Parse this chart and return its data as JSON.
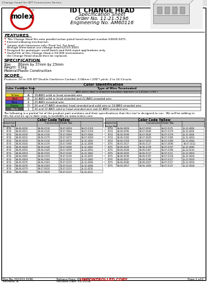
{
  "title_line1": "IDT CHANGE HEAD",
  "title_line2": "Specification Sheet",
  "title_line3": "Order No. 11-21-5196",
  "title_line4": "Engineering No. AM60116",
  "header_text": "Change head for IDT Connectors Series.",
  "features_title": "FEATURES",
  "features": [
    "This Change Head fits onto parallel action pistol hand tool part number 63600-0471.",
    "Internal indexing mechanism.",
    "Jumper style harnesses only (Feed 1a).  For feed through termination use change head 62100-0400.",
    "Designed for prototype, small batch and field repair applications only.",
    "Useful life of this Change Head is 50,000 terminations; the Change Head should then be replaced."
  ],
  "spec_title": "SPECIFICATION",
  "spec_size": "80mm by 37mm by 23mm",
  "spec_weight": "0.1kg",
  "spec_material": "Plastic Construction",
  "scope_title": "SCOPE",
  "scope_text": "Products: 16 to 100 IDT Double Cantilever Contact, 2.54mm (.100\") pitch, 2 to 16 Circuits.",
  "color_codes": [
    "Yellow",
    "Red",
    "Blue",
    "Green",
    "Black"
  ],
  "slot_sizes": [
    "A",
    "B",
    "4",
    "D",
    "1"
  ],
  "wire_types": [
    "18-AWG solid or head stranded wire",
    "24 AWG solid or head stranded and 22 AWG stranded wire",
    "20 AWG stranded wire",
    "26 and 27 AWG stranded, head stranded and solid wire or 24 AWG stranded wire",
    "24 and 22 AWG solid or head stranded wire and 22 AWG stranded wire"
  ],
  "wire_sub_note": "AWG wires have a stranded insulation diameter of 2.41mm (.095\")",
  "partial_line1": "The following is a partial list of the product part numbers and their specifications that this tool is designed to run.  We will be adding to",
  "partial_line2": "this list and an up to date copy is available on www.molex.com.",
  "color_code_yellow": "Color Code Yellow",
  "left_table_data": [
    [
      "7674",
      "09-06-0020",
      "09-06-0110",
      "19-07-0059",
      "09-07-0150"
    ],
    [
      "7674",
      "09-06-0021",
      "09-06-0120",
      "19-07-0064",
      "09-07-0159"
    ],
    [
      "7674",
      "09-06-0030",
      "09-06-0130",
      "19-07-0069",
      "09-07-0060"
    ],
    [
      "7674",
      "09-06-0032",
      "09-06-0179",
      "19-07-0070",
      "09-07-0069"
    ],
    [
      "7674",
      "09-06-0039",
      "09-06-0130",
      "19-07-0079",
      "26-32-4004"
    ],
    [
      "7674",
      "09-06-0040",
      "09-06-0139",
      "19-07-0080",
      "26-32-4008"
    ],
    [
      "7674",
      "09-06-0049",
      "09-06-0140",
      "19-07-0090",
      "26-32-4044"
    ],
    [
      "7674",
      "09-06-0050",
      "09-06-0149",
      "19-07-0099",
      "26-32-4054"
    ],
    [
      "7674",
      "09-06-0059",
      "09-06-0150",
      "19-07-0100",
      "26-32-4064"
    ],
    [
      "7674",
      "09-06-0060",
      "09-06-0159",
      "19-07-0109",
      "26-32-4074"
    ],
    [
      "7674",
      "09-06-0069",
      "09-06-0160",
      "19-07-0110",
      "26-32-4080"
    ],
    [
      "7674",
      "09-06-0070",
      "09-06-0169",
      "19-07-0119",
      "26-32-4094"
    ],
    [
      "7674",
      "09-06-0076",
      "09-06-0169",
      "19-07-0120",
      "26-32-4094"
    ],
    [
      "7674",
      "09-06-0079",
      "09-07-0020",
      "19-07-0119",
      "26-32-4104"
    ],
    [
      "7674",
      "09-06-0080",
      "09-07-0029",
      "19-07-0119",
      "26-32-4114"
    ]
  ],
  "right_table_data": [
    [
      "7674",
      "09-06-0009",
      "09-07-0030",
      "09-07-0171",
      "26-32-4024"
    ],
    [
      "7674",
      "09-06-0090",
      "09-07-0040",
      "09-07-0179",
      "26-32-4034"
    ],
    [
      "7674",
      "09-06-0099",
      "09-07-0040",
      "09-07-0179",
      "26-32-4044"
    ],
    [
      "7674",
      "09-06-0100",
      "09-07-0049",
      "09-07-0180",
      "26-32-4054"
    ],
    [
      "7674",
      "09-06-0109",
      "09-07-0050",
      "09-07-0189",
      "26-32-4064"
    ],
    [
      "7675",
      "09-05-0017",
      "09-06-0117",
      "09-07-0090",
      "09-07-5012"
    ],
    [
      "7675",
      "09-06-0020",
      "09-06-0178",
      "09-07-0107",
      "26-32-0083"
    ],
    [
      "7675",
      "09-06-0028",
      "09-06-0187",
      "09-07-0108",
      "26-32-0163"
    ],
    [
      "7675",
      "09-06-0030",
      "09-06-0117",
      "09-07-0111",
      "26-32-9050"
    ],
    [
      "7675",
      "09-06-0038",
      "09-06-0197",
      "09-07-0118",
      "26-32-9024"
    ],
    [
      "7675",
      "09-06-0047",
      "09-06-0198",
      "09-07-0117",
      "26-32-9030"
    ],
    [
      "7675",
      "09-06-0048",
      "09-06-0207",
      "09-07-0117",
      "26-32-9034"
    ],
    [
      "7675",
      "09-06-0057",
      "09-06-1008",
      "09-07-0137",
      "26-32-9040"
    ]
  ],
  "footer_doc": "Doc No. 011211 5196",
  "footer_revision": "Revision: A",
  "footer_release": "Release Date: 05-15-06",
  "footer_revision_date": "Revision Date: 05-15-06",
  "footer_uncontrolled": "UNCONTROLLED COPY",
  "footer_page": "Page 1 of 6",
  "molex_red": "#cc0000",
  "table_header_bg": "#c0c0c0",
  "row_colors": [
    "#f0e860",
    "#e06060",
    "#6060e0",
    "#60b060",
    "#808080"
  ]
}
